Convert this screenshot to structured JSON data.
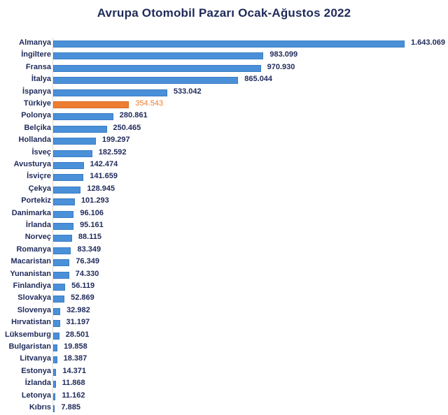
{
  "chart_data": {
    "type": "bar",
    "orientation": "horizontal",
    "title": "Avrupa Otomobil Pazarı Ocak-Ağustos 2022",
    "xlabel": "",
    "ylabel": "",
    "grid": false,
    "legend": null,
    "highlight_category": "Türkiye",
    "colors": {
      "default": "#4a90d9",
      "highlight": "#ed7d31",
      "text": "#1f2a5a"
    },
    "categories": [
      "Almanya",
      "İngiltere",
      "Fransa",
      "İtalya",
      "İspanya",
      "Türkiye",
      "Polonya",
      "Belçika",
      "Hollanda",
      "İsveç",
      "Avusturya",
      "İsviçre",
      "Çekya",
      "Portekiz",
      "Danimarka",
      "İrlanda",
      "Norveç",
      "Romanya",
      "Macaristan",
      "Yunanistan",
      "Finlandiya",
      "Slovakya",
      "Slovenya",
      "Hırvatistan",
      "Lüksemburg",
      "Bulgaristan",
      "Litvanya",
      "Estonya",
      "İzlanda",
      "Letonya",
      "Kıbrıs"
    ],
    "values": [
      1643069,
      983099,
      970930,
      865044,
      533042,
      354543,
      280861,
      250465,
      199297,
      182592,
      142474,
      141659,
      128945,
      101293,
      96106,
      95161,
      88115,
      83349,
      76349,
      74330,
      56119,
      52869,
      32982,
      31197,
      28501,
      19858,
      18387,
      14371,
      11868,
      11162,
      7885
    ],
    "value_labels": [
      "1.643.069",
      "983.099",
      "970.930",
      "865.044",
      "533.042",
      "354.543",
      "280.861",
      "250.465",
      "199.297",
      "182.592",
      "142.474",
      "141.659",
      "128.945",
      "101.293",
      "96.106",
      "95.161",
      "88.115",
      "83.349",
      "76.349",
      "74.330",
      "56.119",
      "52.869",
      "32.982",
      "31.197",
      "28.501",
      "19.858",
      "18.387",
      "14.371",
      "11.868",
      "11.162",
      "7.885"
    ]
  }
}
